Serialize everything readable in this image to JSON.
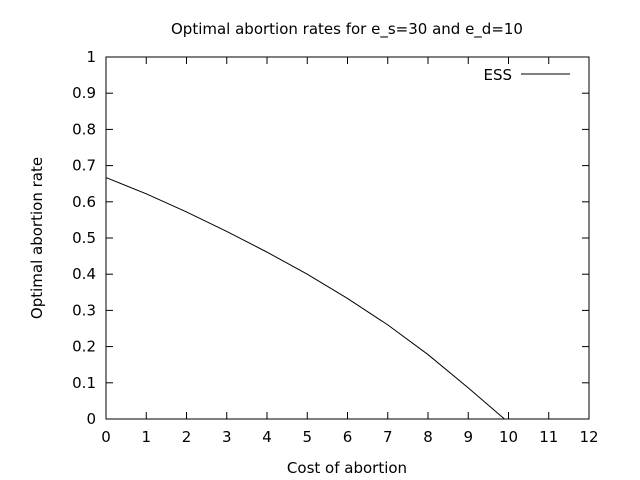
{
  "chart_data": {
    "type": "line",
    "title": "Optimal abortion rates for e_s=30 and e_d=10",
    "xlabel": "Cost of abortion",
    "ylabel": "Optimal abortion rate",
    "xlim": [
      0,
      12
    ],
    "ylim": [
      0,
      1
    ],
    "xticks": [
      0,
      1,
      2,
      3,
      4,
      5,
      6,
      7,
      8,
      9,
      10,
      11,
      12
    ],
    "yticks": [
      0,
      0.1,
      0.2,
      0.3,
      0.4,
      0.5,
      0.6,
      0.7,
      0.8,
      0.9,
      1
    ],
    "grid": false,
    "legend_position": "top-right",
    "series": [
      {
        "name": "ESS",
        "color": "#000000",
        "x": [
          0,
          1,
          2,
          3,
          4,
          5,
          6,
          7,
          8,
          9,
          9.9
        ],
        "y": [
          0.667,
          0.622,
          0.572,
          0.518,
          0.461,
          0.4,
          0.333,
          0.26,
          0.178,
          0.086,
          0.0
        ]
      }
    ]
  }
}
